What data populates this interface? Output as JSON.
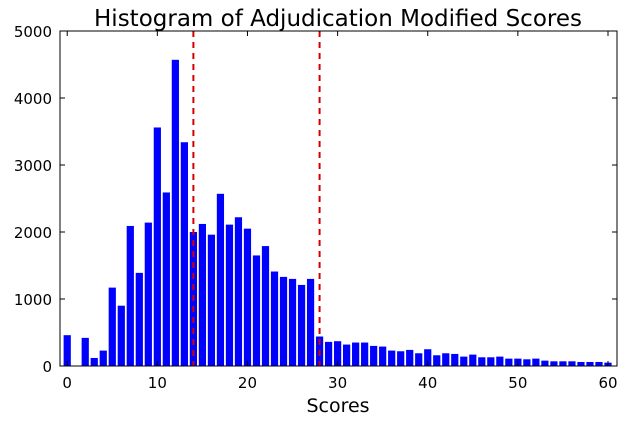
{
  "colors": {
    "bar": "#0000ff",
    "threshold": "#d40000",
    "axis": "#000000"
  },
  "chart_data": {
    "type": "bar",
    "title": "Histogram of Adjudication Modified Scores",
    "xlabel": "Scores",
    "ylabel": "",
    "xlim": [
      -0.8,
      61
    ],
    "ylim": [
      0,
      5000
    ],
    "x_ticks": [
      0,
      10,
      20,
      30,
      40,
      50,
      60
    ],
    "y_ticks": [
      0,
      1000,
      2000,
      3000,
      4000,
      5000
    ],
    "grid": false,
    "legend": "none",
    "bar_width": 0.8,
    "x": [
      0,
      1,
      2,
      3,
      4,
      5,
      6,
      7,
      8,
      9,
      10,
      11,
      12,
      13,
      14,
      15,
      16,
      17,
      18,
      19,
      20,
      21,
      22,
      23,
      24,
      25,
      26,
      27,
      28,
      29,
      30,
      31,
      32,
      33,
      34,
      35,
      36,
      37,
      38,
      39,
      40,
      41,
      42,
      43,
      44,
      45,
      46,
      47,
      48,
      49,
      50,
      51,
      52,
      53,
      54,
      55,
      56,
      57,
      58,
      59,
      60
    ],
    "values": [
      460,
      0,
      420,
      120,
      230,
      1170,
      900,
      2090,
      1390,
      2140,
      3560,
      2590,
      4570,
      3340,
      2000,
      2120,
      1960,
      2570,
      2110,
      2220,
      2050,
      1650,
      1790,
      1410,
      1330,
      1300,
      1210,
      1300,
      440,
      360,
      370,
      320,
      350,
      350,
      300,
      290,
      230,
      220,
      240,
      190,
      250,
      160,
      190,
      180,
      140,
      170,
      130,
      130,
      140,
      110,
      110,
      100,
      110,
      80,
      70,
      70,
      70,
      60,
      60,
      60,
      50
    ],
    "reference_lines": [
      14,
      28
    ]
  }
}
